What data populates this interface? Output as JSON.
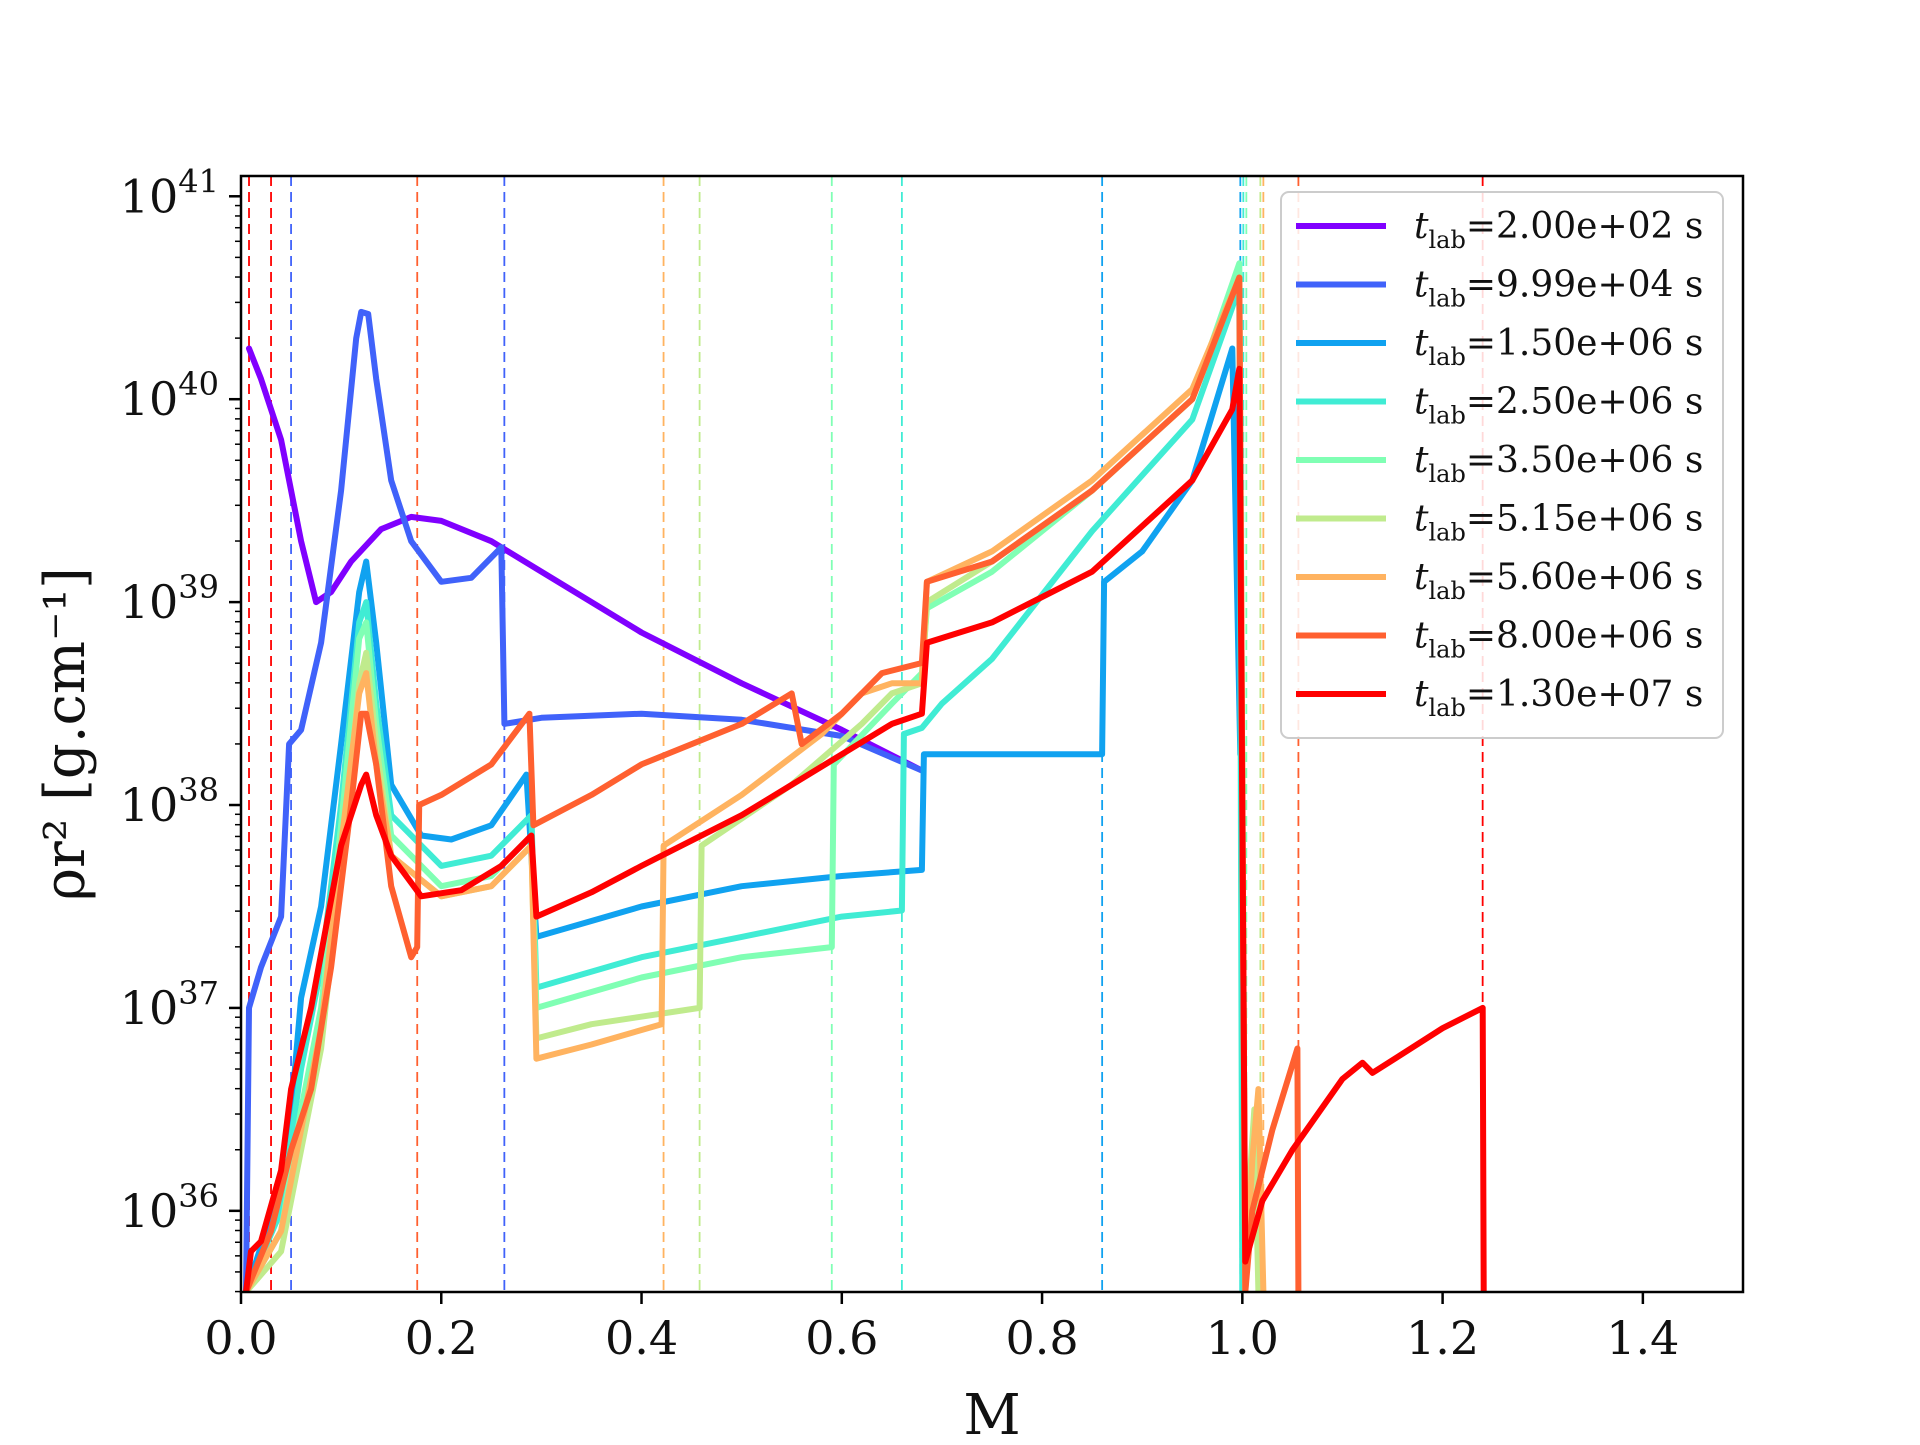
{
  "chart_data": {
    "type": "line",
    "xlabel": "M",
    "ylabel": "ρr² [g.cm⁻¹]",
    "xlim": [
      0.0,
      1.5
    ],
    "ylim_log10": [
      35.6,
      41.1
    ],
    "y_scale": "log",
    "x_ticks": [
      "0.0",
      "0.2",
      "0.4",
      "0.6",
      "0.8",
      "1.0",
      "1.2",
      "1.4"
    ],
    "y_ticks": [
      {
        "base": "10",
        "exp": "36"
      },
      {
        "base": "10",
        "exp": "37"
      },
      {
        "base": "10",
        "exp": "38"
      },
      {
        "base": "10",
        "exp": "39"
      },
      {
        "base": "10",
        "exp": "40"
      },
      {
        "base": "10",
        "exp": "41"
      }
    ],
    "grid": false,
    "legend_position": "top-right",
    "series": [
      {
        "name": "t_lab=2.00e+02 s",
        "legend_value": "=2.00e+02 s",
        "color": "#8000ff",
        "vline_x": null,
        "points": [
          [
            0.008,
            40.25
          ],
          [
            0.02,
            40.1
          ],
          [
            0.04,
            39.8
          ],
          [
            0.06,
            39.3
          ],
          [
            0.075,
            39.0
          ],
          [
            0.09,
            39.05
          ],
          [
            0.11,
            39.2
          ],
          [
            0.14,
            39.36
          ],
          [
            0.17,
            39.42
          ],
          [
            0.2,
            39.4
          ],
          [
            0.25,
            39.3
          ],
          [
            0.3,
            39.15
          ],
          [
            0.4,
            38.85
          ],
          [
            0.5,
            38.6
          ],
          [
            0.6,
            38.37
          ],
          [
            0.68,
            38.17
          ]
        ]
      },
      {
        "name": "t_lab=9.99e+04 s",
        "legend_value": "=9.99e+04 s",
        "color": "#4062fa",
        "vline_x": [
          0.05,
          0.263
        ],
        "points": [
          [
            0.005,
            35.6
          ],
          [
            0.008,
            37.0
          ],
          [
            0.02,
            37.2
          ],
          [
            0.04,
            37.45
          ],
          [
            0.048,
            38.3
          ],
          [
            0.06,
            38.37
          ],
          [
            0.08,
            38.8
          ],
          [
            0.1,
            39.55
          ],
          [
            0.115,
            40.3
          ],
          [
            0.12,
            40.43
          ],
          [
            0.127,
            40.42
          ],
          [
            0.135,
            40.1
          ],
          [
            0.15,
            39.6
          ],
          [
            0.17,
            39.3
          ],
          [
            0.2,
            39.1
          ],
          [
            0.23,
            39.12
          ],
          [
            0.26,
            39.27
          ],
          [
            0.263,
            38.4
          ],
          [
            0.3,
            38.43
          ],
          [
            0.4,
            38.45
          ],
          [
            0.5,
            38.42
          ],
          [
            0.6,
            38.34
          ],
          [
            0.68,
            38.17
          ]
        ]
      },
      {
        "name": "t_lab=1.50e+06 s",
        "legend_value": "=1.50e+06 s",
        "color": "#10a2f0",
        "vline_x": [
          0.86,
          0.998
        ],
        "points": [
          [
            0.005,
            35.6
          ],
          [
            0.045,
            36.2
          ],
          [
            0.06,
            37.05
          ],
          [
            0.08,
            37.5
          ],
          [
            0.1,
            38.3
          ],
          [
            0.118,
            39.05
          ],
          [
            0.125,
            39.2
          ],
          [
            0.135,
            38.8
          ],
          [
            0.15,
            38.1
          ],
          [
            0.18,
            37.85
          ],
          [
            0.21,
            37.83
          ],
          [
            0.25,
            37.9
          ],
          [
            0.285,
            38.15
          ],
          [
            0.295,
            37.35
          ],
          [
            0.4,
            37.5
          ],
          [
            0.5,
            37.6
          ],
          [
            0.6,
            37.65
          ],
          [
            0.68,
            37.68
          ],
          [
            0.682,
            38.25
          ],
          [
            0.86,
            38.25
          ],
          [
            0.862,
            39.1
          ],
          [
            0.9,
            39.25
          ],
          [
            0.95,
            39.6
          ],
          [
            0.99,
            40.25
          ],
          [
            0.998,
            38.25
          ]
        ]
      },
      {
        "name": "t_lab=2.50e+06 s",
        "legend_value": "=2.50e+06 s",
        "color": "#40ecd4",
        "vline_x": [
          0.66,
          1.001
        ],
        "points": [
          [
            0.005,
            35.6
          ],
          [
            0.04,
            36.0
          ],
          [
            0.06,
            36.7
          ],
          [
            0.08,
            37.2
          ],
          [
            0.1,
            38.0
          ],
          [
            0.118,
            38.9
          ],
          [
            0.125,
            39.0
          ],
          [
            0.135,
            38.5
          ],
          [
            0.15,
            37.95
          ],
          [
            0.2,
            37.7
          ],
          [
            0.25,
            37.75
          ],
          [
            0.29,
            37.95
          ],
          [
            0.295,
            37.1
          ],
          [
            0.4,
            37.25
          ],
          [
            0.5,
            37.35
          ],
          [
            0.6,
            37.45
          ],
          [
            0.66,
            37.48
          ],
          [
            0.662,
            38.35
          ],
          [
            0.68,
            38.38
          ],
          [
            0.7,
            38.5
          ],
          [
            0.75,
            38.72
          ],
          [
            0.85,
            39.35
          ],
          [
            0.95,
            39.9
          ],
          [
            0.997,
            40.55
          ],
          [
            1.0,
            35.6
          ]
        ]
      },
      {
        "name": "t_lab=3.50e+06 s",
        "legend_value": "=3.50e+06 s",
        "color": "#80ffb4",
        "vline_x": [
          0.59,
          1.004
        ],
        "points": [
          [
            0.005,
            35.6
          ],
          [
            0.04,
            35.9
          ],
          [
            0.06,
            36.5
          ],
          [
            0.08,
            37.0
          ],
          [
            0.1,
            37.9
          ],
          [
            0.118,
            38.82
          ],
          [
            0.125,
            38.9
          ],
          [
            0.135,
            38.4
          ],
          [
            0.15,
            37.85
          ],
          [
            0.2,
            37.6
          ],
          [
            0.25,
            37.65
          ],
          [
            0.29,
            37.85
          ],
          [
            0.295,
            37.0
          ],
          [
            0.4,
            37.15
          ],
          [
            0.5,
            37.25
          ],
          [
            0.59,
            37.3
          ],
          [
            0.592,
            38.2
          ],
          [
            0.65,
            38.5
          ],
          [
            0.68,
            38.65
          ],
          [
            0.685,
            38.97
          ],
          [
            0.75,
            39.15
          ],
          [
            0.85,
            39.55
          ],
          [
            0.95,
            40.0
          ],
          [
            0.997,
            40.67
          ],
          [
            1.003,
            35.6
          ]
        ]
      },
      {
        "name": "t_lab=5.15e+06 s",
        "legend_value": "=5.15e+06 s",
        "color": "#c0eb8d",
        "vline_x": [
          0.458,
          1.018
        ],
        "points": [
          [
            0.005,
            35.6
          ],
          [
            0.04,
            35.8
          ],
          [
            0.06,
            36.3
          ],
          [
            0.08,
            36.8
          ],
          [
            0.1,
            37.7
          ],
          [
            0.118,
            38.6
          ],
          [
            0.125,
            38.75
          ],
          [
            0.135,
            38.3
          ],
          [
            0.15,
            37.75
          ],
          [
            0.2,
            37.55
          ],
          [
            0.25,
            37.6
          ],
          [
            0.29,
            37.8
          ],
          [
            0.295,
            36.85
          ],
          [
            0.35,
            36.92
          ],
          [
            0.458,
            37.0
          ],
          [
            0.46,
            37.8
          ],
          [
            0.55,
            38.1
          ],
          [
            0.62,
            38.4
          ],
          [
            0.65,
            38.55
          ],
          [
            0.68,
            38.6
          ],
          [
            0.685,
            39.0
          ],
          [
            0.75,
            39.2
          ],
          [
            0.85,
            39.55
          ],
          [
            0.95,
            40.0
          ],
          [
            0.997,
            40.6
          ],
          [
            1.003,
            35.6
          ],
          [
            1.008,
            36.2
          ],
          [
            1.012,
            36.5
          ],
          [
            1.016,
            35.6
          ]
        ]
      },
      {
        "name": "t_lab=5.60e+06 s",
        "legend_value": "=5.60e+06 s",
        "color": "#ffb360",
        "vline_x": [
          0.422,
          1.021
        ],
        "points": [
          [
            0.005,
            35.6
          ],
          [
            0.04,
            35.9
          ],
          [
            0.06,
            36.4
          ],
          [
            0.08,
            36.9
          ],
          [
            0.1,
            37.8
          ],
          [
            0.118,
            38.55
          ],
          [
            0.125,
            38.65
          ],
          [
            0.135,
            38.2
          ],
          [
            0.15,
            37.75
          ],
          [
            0.2,
            37.55
          ],
          [
            0.25,
            37.6
          ],
          [
            0.29,
            37.8
          ],
          [
            0.295,
            36.75
          ],
          [
            0.35,
            36.82
          ],
          [
            0.42,
            36.92
          ],
          [
            0.422,
            37.8
          ],
          [
            0.5,
            38.05
          ],
          [
            0.58,
            38.35
          ],
          [
            0.62,
            38.55
          ],
          [
            0.65,
            38.6
          ],
          [
            0.68,
            38.6
          ],
          [
            0.685,
            39.1
          ],
          [
            0.75,
            39.25
          ],
          [
            0.85,
            39.6
          ],
          [
            0.95,
            40.05
          ],
          [
            0.997,
            40.6
          ],
          [
            1.003,
            35.6
          ],
          [
            1.01,
            36.25
          ],
          [
            1.016,
            36.6
          ],
          [
            1.021,
            35.6
          ]
        ]
      },
      {
        "name": "t_lab=8.00e+06 s",
        "legend_value": "=8.00e+06 s",
        "color": "#ff6030",
        "vline_x": [
          0.176,
          1.056
        ],
        "points": [
          [
            0.005,
            35.6
          ],
          [
            0.03,
            35.9
          ],
          [
            0.05,
            36.3
          ],
          [
            0.07,
            36.6
          ],
          [
            0.09,
            37.2
          ],
          [
            0.11,
            38.0
          ],
          [
            0.12,
            38.45
          ],
          [
            0.125,
            38.45
          ],
          [
            0.135,
            38.2
          ],
          [
            0.15,
            37.6
          ],
          [
            0.17,
            37.25
          ],
          [
            0.176,
            37.3
          ],
          [
            0.178,
            38.0
          ],
          [
            0.2,
            38.05
          ],
          [
            0.25,
            38.2
          ],
          [
            0.288,
            38.45
          ],
          [
            0.292,
            37.9
          ],
          [
            0.35,
            38.05
          ],
          [
            0.4,
            38.2
          ],
          [
            0.5,
            38.4
          ],
          [
            0.55,
            38.55
          ],
          [
            0.56,
            38.3
          ],
          [
            0.6,
            38.45
          ],
          [
            0.64,
            38.65
          ],
          [
            0.68,
            38.7
          ],
          [
            0.685,
            39.1
          ],
          [
            0.75,
            39.2
          ],
          [
            0.85,
            39.55
          ],
          [
            0.95,
            40.0
          ],
          [
            0.997,
            40.6
          ],
          [
            1.003,
            35.6
          ],
          [
            1.01,
            36.0
          ],
          [
            1.03,
            36.4
          ],
          [
            1.055,
            36.8
          ],
          [
            1.056,
            35.6
          ]
        ]
      },
      {
        "name": "t_lab=1.30e+07 s",
        "legend_value": "=1.30e+07 s",
        "color": "#ff0000",
        "vline_x": [
          0.008,
          0.03,
          1.24
        ],
        "points": [
          [
            0.005,
            35.6
          ],
          [
            0.01,
            35.8
          ],
          [
            0.02,
            35.85
          ],
          [
            0.04,
            36.2
          ],
          [
            0.05,
            36.6
          ],
          [
            0.07,
            37.0
          ],
          [
            0.1,
            37.8
          ],
          [
            0.12,
            38.1
          ],
          [
            0.125,
            38.15
          ],
          [
            0.135,
            37.95
          ],
          [
            0.15,
            37.75
          ],
          [
            0.18,
            37.55
          ],
          [
            0.22,
            37.58
          ],
          [
            0.26,
            37.7
          ],
          [
            0.29,
            37.85
          ],
          [
            0.295,
            37.45
          ],
          [
            0.35,
            37.57
          ],
          [
            0.4,
            37.7
          ],
          [
            0.5,
            37.95
          ],
          [
            0.6,
            38.25
          ],
          [
            0.65,
            38.4
          ],
          [
            0.68,
            38.45
          ],
          [
            0.685,
            38.8
          ],
          [
            0.75,
            38.9
          ],
          [
            0.85,
            39.15
          ],
          [
            0.95,
            39.6
          ],
          [
            0.99,
            39.95
          ],
          [
            0.997,
            40.15
          ],
          [
            1.003,
            35.75
          ],
          [
            1.02,
            36.05
          ],
          [
            1.05,
            36.3
          ],
          [
            1.1,
            36.65
          ],
          [
            1.12,
            36.73
          ],
          [
            1.13,
            36.68
          ],
          [
            1.2,
            36.9
          ],
          [
            1.24,
            37.0
          ],
          [
            1.241,
            35.6
          ]
        ]
      }
    ]
  }
}
